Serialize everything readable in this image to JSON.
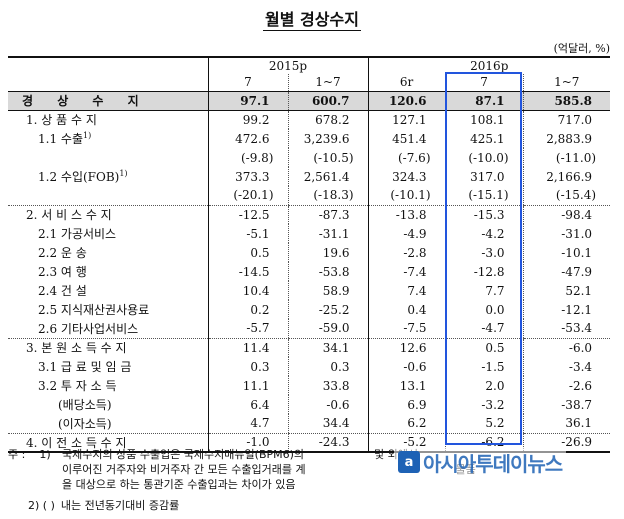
{
  "title": "월별 경상수지",
  "unit": "(억달러, %)",
  "headers": {
    "period_2015": "2015p",
    "period_2016": "2016p",
    "cols": [
      "7",
      "1~7",
      "6r",
      "7",
      "1~7"
    ]
  },
  "rows": [
    {
      "label": "경 상 수 지",
      "values": [
        "97.1",
        "600.7",
        "120.6",
        "87.1",
        "585.8"
      ]
    },
    {
      "label": "1. 상 품 수 지",
      "values": [
        "99.2",
        "678.2",
        "127.1",
        "108.1",
        "717.0"
      ]
    },
    {
      "label": "1.1 수출",
      "values": [
        "472.6",
        "3,239.6",
        "451.4",
        "425.1",
        "2,883.9"
      ]
    },
    {
      "label": "",
      "values": [
        "(-9.8)",
        "(-10.5)",
        "(-7.6)",
        "(-10.0)",
        "(-11.0)"
      ]
    },
    {
      "label": "1.2 수입(FOB)",
      "values": [
        "373.3",
        "2,561.4",
        "324.3",
        "317.0",
        "2,166.9"
      ]
    },
    {
      "label": "",
      "values": [
        "(-20.1)",
        "(-18.3)",
        "(-10.1)",
        "(-15.1)",
        "(-15.4)"
      ]
    },
    {
      "label": "2. 서 비 스 수 지",
      "values": [
        "-12.5",
        "-87.3",
        "-13.8",
        "-15.3",
        "-98.4"
      ]
    },
    {
      "label": "2.1 가공서비스",
      "values": [
        "-5.1",
        "-31.1",
        "-4.9",
        "-4.2",
        "-31.0"
      ]
    },
    {
      "label": "2.2 운 송",
      "values": [
        "0.5",
        "19.6",
        "-2.8",
        "-3.0",
        "-10.1"
      ]
    },
    {
      "label": "2.3 여 행",
      "values": [
        "-14.5",
        "-53.8",
        "-7.4",
        "-12.8",
        "-47.9"
      ]
    },
    {
      "label": "2.4 건 설",
      "values": [
        "10.4",
        "58.9",
        "7.4",
        "7.7",
        "52.1"
      ]
    },
    {
      "label": "2.5 지식재산권사용료",
      "values": [
        "0.2",
        "-25.2",
        "0.4",
        "0.0",
        "-12.1"
      ]
    },
    {
      "label": "2.6 기타사업서비스",
      "values": [
        "-5.7",
        "-59.0",
        "-7.5",
        "-4.7",
        "-53.4"
      ]
    },
    {
      "label": "3. 본 원 소 득 수 지",
      "values": [
        "11.4",
        "34.1",
        "12.6",
        "0.5",
        "-6.0"
      ]
    },
    {
      "label": "3.1 급 료 및 임 금",
      "values": [
        "0.3",
        "0.3",
        "-0.6",
        "-1.5",
        "-3.4"
      ]
    },
    {
      "label": "3.2 투 자 소 득",
      "values": [
        "11.1",
        "33.8",
        "13.1",
        "2.0",
        "-2.6"
      ]
    },
    {
      "label": "(배당소득)",
      "values": [
        "6.4",
        "-0.6",
        "6.9",
        "-3.2",
        "-38.7"
      ]
    },
    {
      "label": "(이자소득)",
      "values": [
        "4.7",
        "34.4",
        "6.2",
        "5.2",
        "36.1"
      ]
    },
    {
      "label": "4. 이 전 소 득 수 지",
      "values": [
        "-1.0",
        "-24.3",
        "-5.2",
        "-6.2",
        "-26.9"
      ]
    }
  ],
  "notes": {
    "prefix": "주 :",
    "n1_key": "1)",
    "n1_line1": "국제수지의 상품 수출입은 국제수지매뉴얼(BPM6)의",
    "n1_line1_end": "및 외에서",
    "n1_line2": "이루어진 거주자와 비거주자 간 모든 수출입거래를 계",
    "n1_line2_end": "물품",
    "n1_line3": "을 대상으로 하는 통관기준 수출입과는 차이가 있음",
    "n2_key": "2) ( )",
    "n2_text": "내는 전년동기대비 증감률"
  },
  "watermark": "아시아투데이뉴스"
}
